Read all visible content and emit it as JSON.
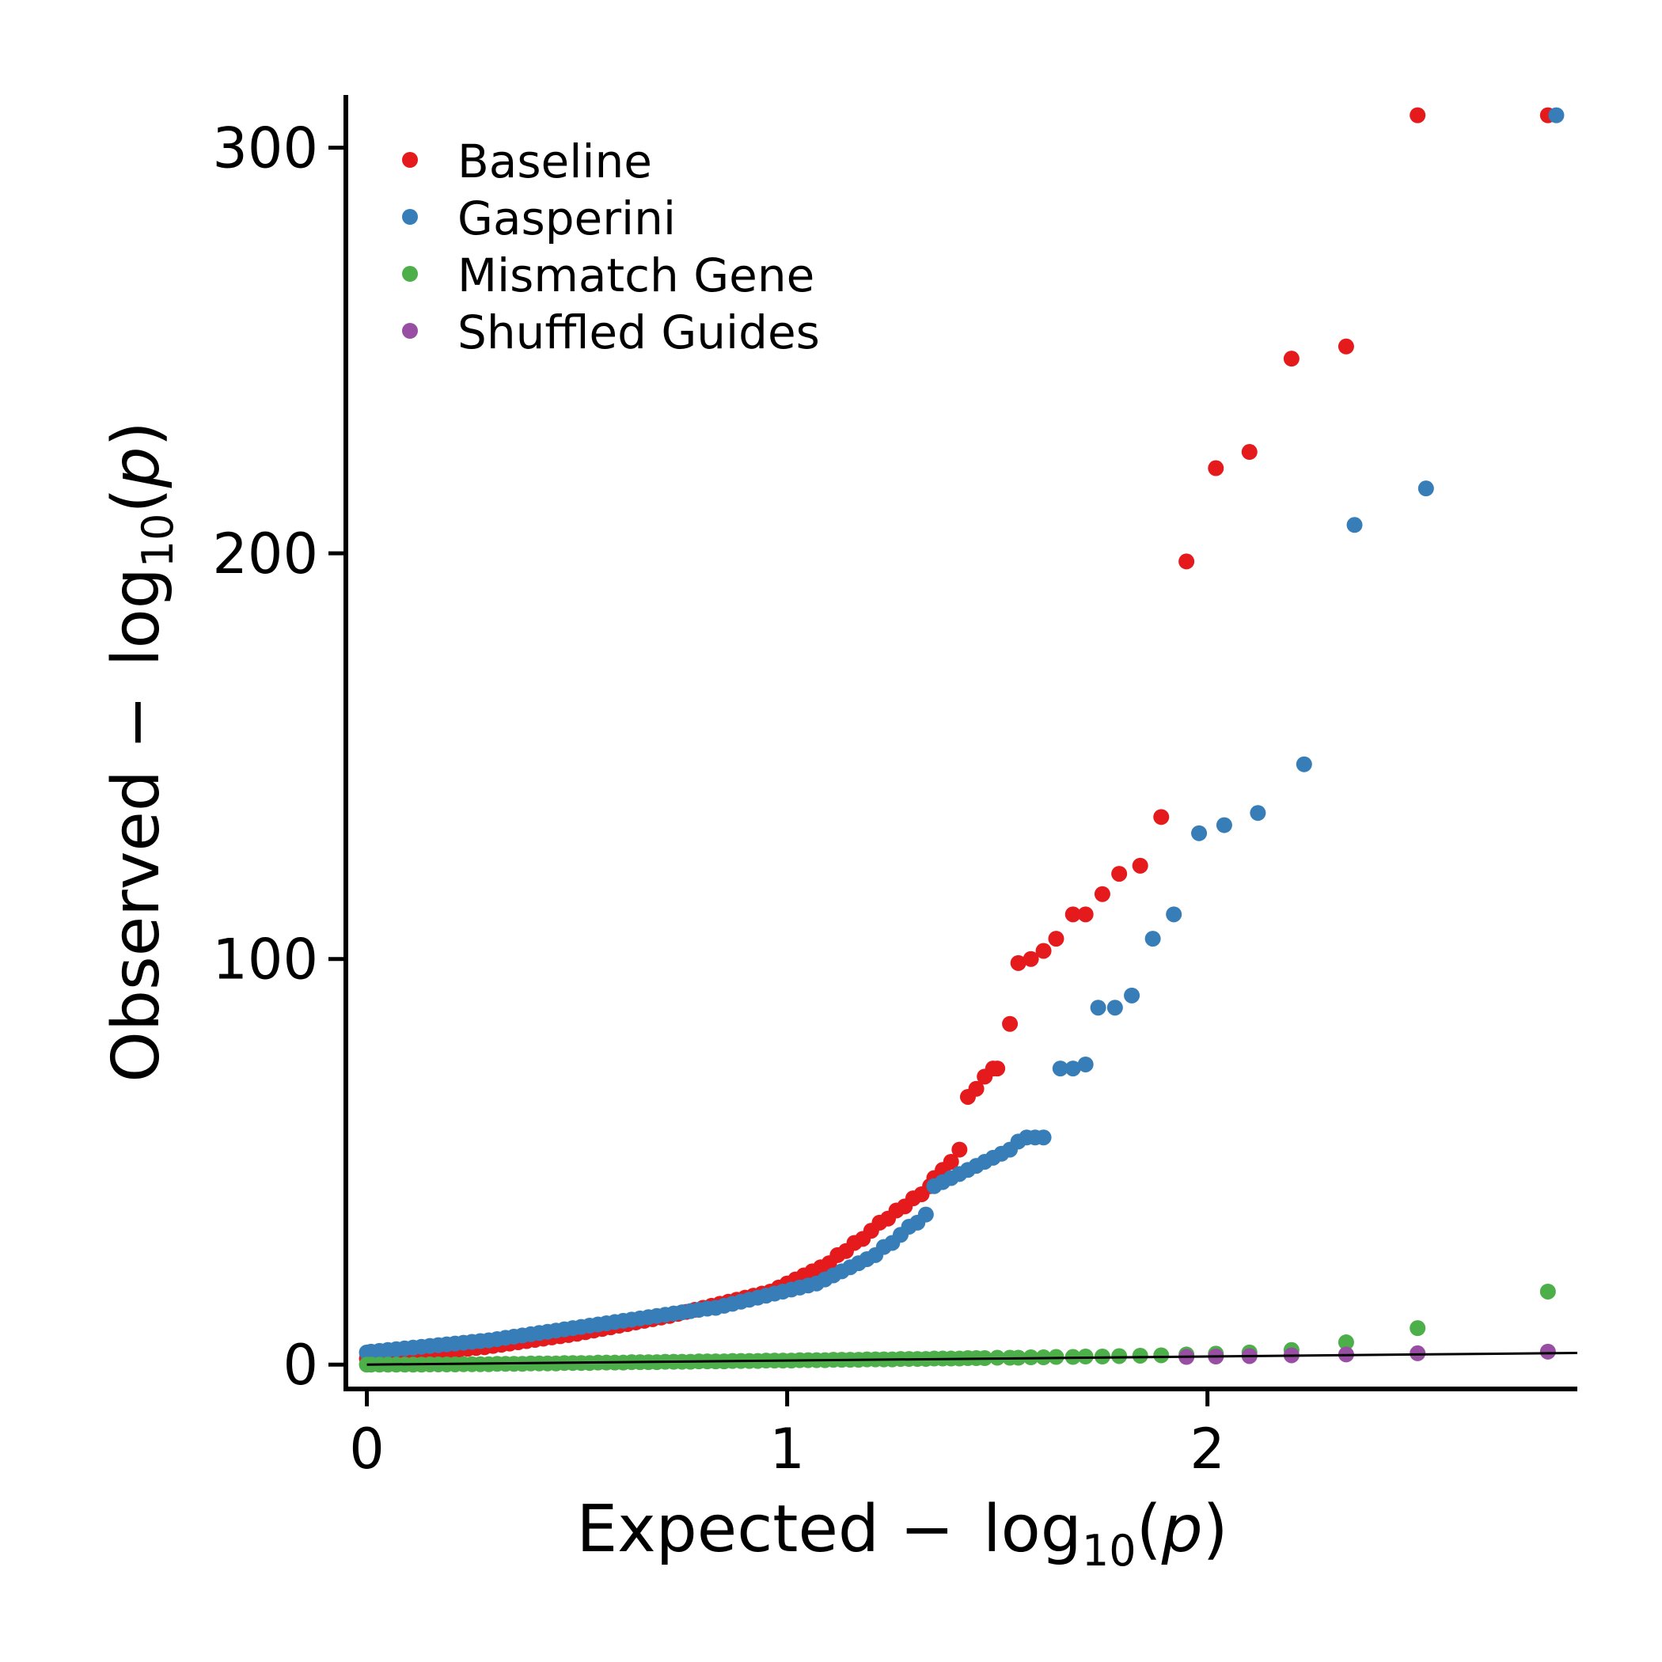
{
  "chart_data": {
    "type": "scatter",
    "title": "",
    "xlabel": {
      "prefix": "Expected",
      "minus": "−",
      "log": "log",
      "base": "10",
      "open": "(",
      "var": "p",
      "close": ")"
    },
    "ylabel": {
      "prefix": "Observed",
      "minus": "−",
      "log": "log",
      "base": "10",
      "open": "(",
      "var": "p",
      "close": ")"
    },
    "xlim": [
      -0.05,
      2.88
    ],
    "ylim": [
      -6,
      313
    ],
    "xticks": [
      0,
      1,
      2
    ],
    "xtick_labels": [
      "0",
      "1",
      "2"
    ],
    "yticks": [
      0,
      100,
      200,
      300
    ],
    "ytick_labels": [
      "0",
      "100",
      "200",
      "300"
    ],
    "grid": false,
    "legend_position": "top-left",
    "reference_line": {
      "x": [
        0,
        2.88
      ],
      "y": [
        0,
        2.88
      ]
    },
    "series": [
      {
        "name": "Baseline",
        "color": "#e41a1c",
        "points": [
          [
            2.81,
            308
          ],
          [
            2.5,
            308
          ],
          [
            2.33,
            251
          ],
          [
            2.2,
            248
          ],
          [
            2.1,
            225
          ],
          [
            2.02,
            221
          ],
          [
            1.95,
            198
          ],
          [
            1.89,
            135
          ],
          [
            1.84,
            123
          ],
          [
            1.79,
            121
          ],
          [
            1.75,
            116
          ],
          [
            1.71,
            111
          ],
          [
            1.68,
            111
          ],
          [
            1.64,
            105
          ],
          [
            1.61,
            102
          ],
          [
            1.58,
            100
          ],
          [
            1.55,
            99
          ],
          [
            1.53,
            84
          ],
          [
            1.5,
            73
          ],
          [
            1.49,
            73
          ],
          [
            1.47,
            71
          ],
          [
            1.45,
            68
          ],
          [
            1.43,
            66
          ],
          [
            1.41,
            53
          ],
          [
            1.39,
            50
          ],
          [
            1.37,
            48
          ],
          [
            1.35,
            46
          ],
          [
            1.34,
            44
          ],
          [
            1.32,
            42
          ],
          [
            1.3,
            41
          ],
          [
            1.28,
            39
          ],
          [
            1.26,
            38
          ],
          [
            1.24,
            36
          ],
          [
            1.22,
            35
          ],
          [
            1.2,
            33
          ],
          [
            1.18,
            31
          ],
          [
            1.16,
            30
          ],
          [
            1.14,
            28
          ],
          [
            1.12,
            27
          ],
          [
            1.1,
            25
          ],
          [
            1.08,
            24
          ],
          [
            1.06,
            23
          ],
          [
            1.04,
            22
          ],
          [
            1.02,
            21
          ],
          [
            1.0,
            20
          ],
          [
            0.98,
            19
          ],
          [
            0.96,
            18
          ],
          [
            0.94,
            17.5
          ],
          [
            0.92,
            17
          ],
          [
            0.9,
            16.5
          ],
          [
            0.88,
            16
          ],
          [
            0.86,
            15.5
          ],
          [
            0.84,
            15
          ],
          [
            0.82,
            14.5
          ],
          [
            0.8,
            14
          ],
          [
            0.78,
            13.5
          ],
          [
            0.76,
            13
          ],
          [
            0.74,
            12.5
          ],
          [
            0.72,
            12
          ],
          [
            0.7,
            11.6
          ],
          [
            0.68,
            11.2
          ],
          [
            0.66,
            10.8
          ],
          [
            0.64,
            10.4
          ],
          [
            0.62,
            10
          ],
          [
            0.6,
            9.6
          ],
          [
            0.58,
            9.2
          ],
          [
            0.56,
            8.8
          ],
          [
            0.54,
            8.4
          ],
          [
            0.52,
            8
          ],
          [
            0.5,
            7.6
          ],
          [
            0.48,
            7.3
          ],
          [
            0.46,
            7
          ],
          [
            0.44,
            6.7
          ],
          [
            0.42,
            6.4
          ],
          [
            0.4,
            6.1
          ],
          [
            0.38,
            5.8
          ],
          [
            0.36,
            5.5
          ],
          [
            0.34,
            5.2
          ],
          [
            0.32,
            4.9
          ],
          [
            0.3,
            4.6
          ],
          [
            0.28,
            4.3
          ],
          [
            0.26,
            4.1
          ],
          [
            0.24,
            3.9
          ],
          [
            0.22,
            3.7
          ],
          [
            0.2,
            3.5
          ],
          [
            0.18,
            3.3
          ],
          [
            0.16,
            3.1
          ],
          [
            0.14,
            2.9
          ],
          [
            0.12,
            2.7
          ],
          [
            0.1,
            2.5
          ],
          [
            0.08,
            2.3
          ],
          [
            0.06,
            2.1
          ],
          [
            0.04,
            1.9
          ],
          [
            0.02,
            1.7
          ],
          [
            0.0,
            1.5
          ]
        ]
      },
      {
        "name": "Gasperini",
        "color": "#377eb8",
        "points": [
          [
            2.83,
            308
          ],
          [
            2.52,
            216
          ],
          [
            2.35,
            207
          ],
          [
            2.23,
            148
          ],
          [
            2.12,
            136
          ],
          [
            2.04,
            133
          ],
          [
            1.98,
            131
          ],
          [
            1.92,
            111
          ],
          [
            1.87,
            105
          ],
          [
            1.82,
            91
          ],
          [
            1.78,
            88
          ],
          [
            1.74,
            88
          ],
          [
            1.71,
            74
          ],
          [
            1.68,
            73
          ],
          [
            1.65,
            73
          ],
          [
            1.61,
            56
          ],
          [
            1.59,
            56
          ],
          [
            1.57,
            56
          ],
          [
            1.55,
            55
          ],
          [
            1.53,
            53
          ],
          [
            1.51,
            52
          ],
          [
            1.49,
            51
          ],
          [
            1.47,
            50
          ],
          [
            1.45,
            49
          ],
          [
            1.43,
            48
          ],
          [
            1.41,
            47
          ],
          [
            1.39,
            46
          ],
          [
            1.37,
            45
          ],
          [
            1.35,
            44
          ],
          [
            1.33,
            37
          ],
          [
            1.31,
            35
          ],
          [
            1.29,
            34
          ],
          [
            1.27,
            32
          ],
          [
            1.25,
            30
          ],
          [
            1.23,
            29
          ],
          [
            1.21,
            27
          ],
          [
            1.19,
            26
          ],
          [
            1.17,
            25
          ],
          [
            1.15,
            24
          ],
          [
            1.13,
            23
          ],
          [
            1.11,
            22
          ],
          [
            1.09,
            21
          ],
          [
            1.07,
            20
          ],
          [
            1.05,
            19.5
          ],
          [
            1.03,
            19
          ],
          [
            1.01,
            18.5
          ],
          [
            0.99,
            18
          ],
          [
            0.97,
            17.5
          ],
          [
            0.95,
            17
          ],
          [
            0.93,
            16.5
          ],
          [
            0.91,
            16
          ],
          [
            0.89,
            15.5
          ],
          [
            0.87,
            15
          ],
          [
            0.85,
            14.5
          ],
          [
            0.83,
            14
          ],
          [
            0.81,
            13.8
          ],
          [
            0.79,
            13.5
          ],
          [
            0.77,
            13.2
          ],
          [
            0.75,
            12.9
          ],
          [
            0.73,
            12.6
          ],
          [
            0.71,
            12.3
          ],
          [
            0.69,
            12
          ],
          [
            0.67,
            11.7
          ],
          [
            0.65,
            11.4
          ],
          [
            0.63,
            11.1
          ],
          [
            0.61,
            10.8
          ],
          [
            0.59,
            10.5
          ],
          [
            0.57,
            10.2
          ],
          [
            0.55,
            9.9
          ],
          [
            0.53,
            9.6
          ],
          [
            0.51,
            9.3
          ],
          [
            0.49,
            9
          ],
          [
            0.47,
            8.7
          ],
          [
            0.45,
            8.4
          ],
          [
            0.43,
            8.1
          ],
          [
            0.41,
            7.8
          ],
          [
            0.39,
            7.5
          ],
          [
            0.37,
            7.2
          ],
          [
            0.35,
            6.9
          ],
          [
            0.33,
            6.6
          ],
          [
            0.31,
            6.3
          ],
          [
            0.29,
            6
          ],
          [
            0.27,
            5.8
          ],
          [
            0.25,
            5.6
          ],
          [
            0.23,
            5.4
          ],
          [
            0.21,
            5.2
          ],
          [
            0.19,
            5
          ],
          [
            0.17,
            4.8
          ],
          [
            0.15,
            4.6
          ],
          [
            0.13,
            4.4
          ],
          [
            0.11,
            4.2
          ],
          [
            0.09,
            4
          ],
          [
            0.07,
            3.8
          ],
          [
            0.05,
            3.6
          ],
          [
            0.03,
            3.4
          ],
          [
            0.01,
            3.2
          ],
          [
            0.0,
            3
          ]
        ]
      },
      {
        "name": "Mismatch Gene",
        "color": "#4daf4a",
        "points": [
          [
            2.81,
            18
          ],
          [
            2.5,
            9
          ],
          [
            2.33,
            5.5
          ],
          [
            2.2,
            3.6
          ],
          [
            2.1,
            3
          ],
          [
            2.02,
            2.7
          ],
          [
            1.95,
            2.5
          ],
          [
            1.89,
            2.3
          ],
          [
            1.84,
            2.2
          ],
          [
            1.79,
            2.1
          ],
          [
            1.75,
            2
          ],
          [
            1.71,
            2
          ],
          [
            1.68,
            1.9
          ],
          [
            1.64,
            1.9
          ],
          [
            1.61,
            1.8
          ],
          [
            1.58,
            1.8
          ],
          [
            1.55,
            1.7
          ],
          [
            1.53,
            1.7
          ],
          [
            1.5,
            1.7
          ],
          [
            1.47,
            1.6
          ],
          [
            1.45,
            1.6
          ],
          [
            1.43,
            1.6
          ],
          [
            1.41,
            1.5
          ],
          [
            1.39,
            1.5
          ],
          [
            1.37,
            1.5
          ],
          [
            1.35,
            1.5
          ],
          [
            1.33,
            1.4
          ],
          [
            1.31,
            1.4
          ],
          [
            1.29,
            1.4
          ],
          [
            1.27,
            1.4
          ],
          [
            1.25,
            1.3
          ],
          [
            1.23,
            1.3
          ],
          [
            1.21,
            1.3
          ],
          [
            1.19,
            1.3
          ],
          [
            1.17,
            1.2
          ],
          [
            1.15,
            1.2
          ],
          [
            1.13,
            1.2
          ],
          [
            1.11,
            1.2
          ],
          [
            1.09,
            1.1
          ],
          [
            1.07,
            1.1
          ],
          [
            1.05,
            1.1
          ],
          [
            1.03,
            1.1
          ],
          [
            1.01,
            1.0
          ],
          [
            0.99,
            1.0
          ],
          [
            0.97,
            1.0
          ],
          [
            0.95,
            1.0
          ],
          [
            0.93,
            0.9
          ],
          [
            0.91,
            0.9
          ],
          [
            0.89,
            0.9
          ],
          [
            0.87,
            0.9
          ],
          [
            0.85,
            0.8
          ],
          [
            0.83,
            0.8
          ],
          [
            0.81,
            0.8
          ],
          [
            0.79,
            0.8
          ],
          [
            0.77,
            0.7
          ],
          [
            0.75,
            0.7
          ],
          [
            0.73,
            0.7
          ],
          [
            0.71,
            0.7
          ],
          [
            0.69,
            0.6
          ],
          [
            0.67,
            0.6
          ],
          [
            0.65,
            0.6
          ],
          [
            0.63,
            0.6
          ],
          [
            0.61,
            0.5
          ],
          [
            0.59,
            0.5
          ],
          [
            0.57,
            0.5
          ],
          [
            0.55,
            0.5
          ],
          [
            0.53,
            0.4
          ],
          [
            0.51,
            0.4
          ],
          [
            0.49,
            0.4
          ],
          [
            0.47,
            0.4
          ],
          [
            0.45,
            0.3
          ],
          [
            0.43,
            0.3
          ],
          [
            0.41,
            0.3
          ],
          [
            0.39,
            0.3
          ],
          [
            0.37,
            0.2
          ],
          [
            0.35,
            0.2
          ],
          [
            0.33,
            0.2
          ],
          [
            0.31,
            0.2
          ],
          [
            0.29,
            0.1
          ],
          [
            0.27,
            0.1
          ],
          [
            0.25,
            0.1
          ],
          [
            0.23,
            0.1
          ],
          [
            0.21,
            0.05
          ],
          [
            0.19,
            0.05
          ],
          [
            0.17,
            0.05
          ],
          [
            0.15,
            0.05
          ],
          [
            0.13,
            0.0
          ],
          [
            0.11,
            0.0
          ],
          [
            0.09,
            0.0
          ],
          [
            0.07,
            0.0
          ],
          [
            0.05,
            0.0
          ],
          [
            0.03,
            0.0
          ],
          [
            0.01,
            0.0
          ],
          [
            0.0,
            0.0
          ]
        ]
      },
      {
        "name": "Shuffled Guides",
        "color": "#984ea3",
        "points": [
          [
            2.81,
            3.2
          ],
          [
            2.5,
            2.8
          ],
          [
            2.33,
            2.5
          ],
          [
            2.2,
            2.3
          ],
          [
            2.1,
            2.1
          ],
          [
            2.02,
            2.0
          ],
          [
            1.95,
            1.9
          ]
        ]
      }
    ]
  }
}
